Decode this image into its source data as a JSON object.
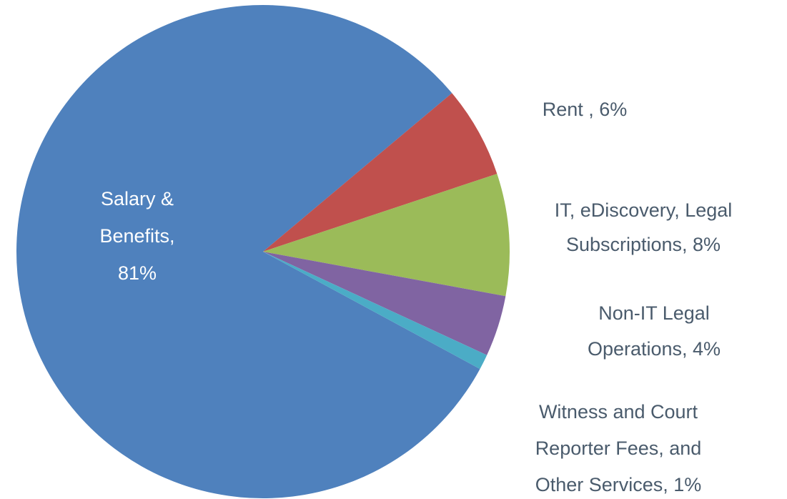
{
  "chart_data": {
    "type": "pie",
    "labels": [
      [
        "Salary &",
        "Benefits,",
        "81%"
      ],
      [
        "Rent , 6%"
      ],
      [
        "IT, eDiscovery, Legal",
        "Subscriptions, 8%"
      ],
      [
        "Non-IT Legal",
        "Operations, 4%"
      ],
      [
        "Witness and Court",
        "Reporter Fees, and",
        "Other Services, 1%"
      ]
    ],
    "values": [
      81,
      6,
      8,
      4,
      1
    ],
    "colors": [
      "#4f81bd",
      "#c0504d",
      "#9bbb59",
      "#8064a2",
      "#4bacc6"
    ]
  }
}
